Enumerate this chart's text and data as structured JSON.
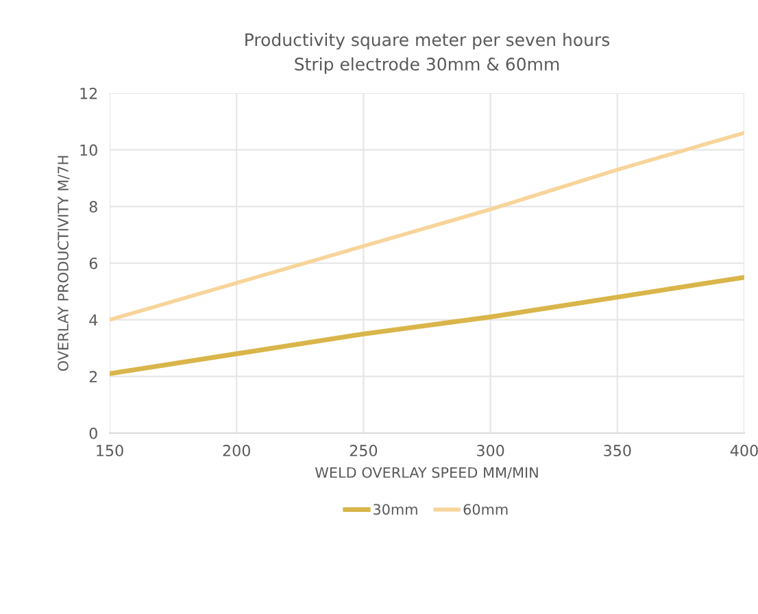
{
  "chart_data": {
    "type": "line",
    "title": "Productivity square meter per seven hours\nStrip electrode 30mm & 60mm",
    "xlabel": "WELD OVERLAY SPEED MM/MIN",
    "ylabel": "OVERLAY PRODUCTIVITY M/7H",
    "x": [
      150,
      200,
      250,
      300,
      350,
      400
    ],
    "series": [
      {
        "name": "30mm",
        "color": "#d9b54a",
        "values": [
          2.1,
          2.8,
          3.5,
          4.1,
          4.8,
          5.5
        ]
      },
      {
        "name": "60mm",
        "color": "#f7d49a",
        "values": [
          4.0,
          5.3,
          6.6,
          7.9,
          9.3,
          10.6
        ]
      }
    ],
    "xlim": [
      150,
      400
    ],
    "xticks": [
      150,
      200,
      250,
      300,
      350,
      400
    ],
    "ylim": [
      0,
      12
    ],
    "yticks": [
      0,
      2,
      4,
      6,
      8,
      10,
      12
    ],
    "grid": true,
    "legend": "bottom",
    "marker": "none",
    "line_style": "solid"
  }
}
